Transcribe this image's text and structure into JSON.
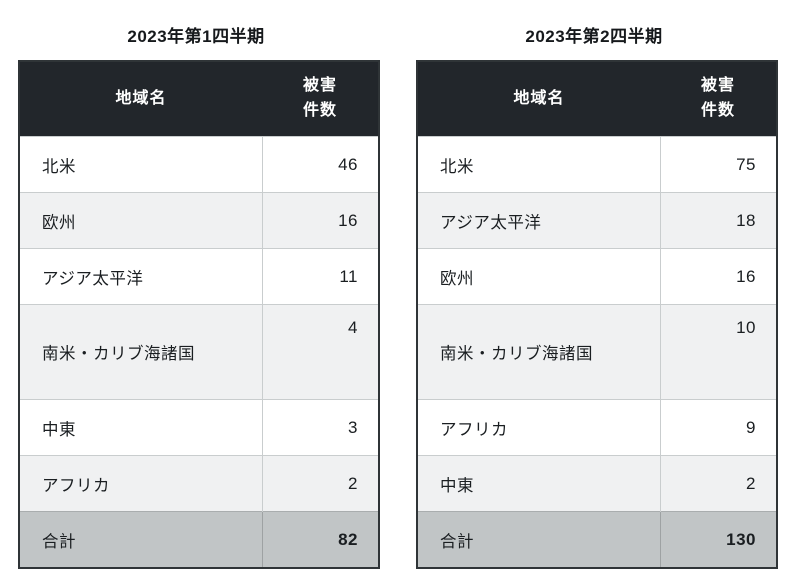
{
  "colors": {
    "header_bg": "#22262b",
    "header_text": "#ffffff",
    "stripe_bg": "#f0f1f2",
    "total_bg": "#c1c5c6",
    "row_border": "#c9cdce",
    "outer_border": "#2f3437",
    "text": "#1a1e21",
    "page_bg": "#ffffff"
  },
  "tables": [
    {
      "title": "2023年第1四半期",
      "headers": {
        "region": "地域名",
        "count_line1": "被害",
        "count_line2": "件数"
      },
      "rows": [
        {
          "region": "北米",
          "count": "46",
          "tall": false
        },
        {
          "region": "欧州",
          "count": "16",
          "tall": false
        },
        {
          "region": "アジア太平洋",
          "count": "11",
          "tall": false
        },
        {
          "region": "南米・カリブ海諸国",
          "count": "4",
          "tall": true
        },
        {
          "region": "中東",
          "count": "3",
          "tall": false
        },
        {
          "region": "アフリカ",
          "count": "2",
          "tall": false
        }
      ],
      "total": {
        "label": "合計",
        "count": "82"
      }
    },
    {
      "title": "2023年第2四半期",
      "headers": {
        "region": "地域名",
        "count_line1": "被害",
        "count_line2": "件数"
      },
      "rows": [
        {
          "region": "北米",
          "count": "75",
          "tall": false
        },
        {
          "region": "アジア太平洋",
          "count": "18",
          "tall": false
        },
        {
          "region": "欧州",
          "count": "16",
          "tall": false
        },
        {
          "region": "南米・カリブ海諸国",
          "count": "10",
          "tall": true
        },
        {
          "region": "アフリカ",
          "count": "9",
          "tall": false
        },
        {
          "region": "中東",
          "count": "2",
          "tall": false
        }
      ],
      "total": {
        "label": "合計",
        "count": "130"
      }
    }
  ],
  "chart_data": [
    {
      "type": "table",
      "title": "2023年第1四半期",
      "columns": [
        "地域名",
        "被害件数"
      ],
      "rows": [
        [
          "北米",
          46
        ],
        [
          "欧州",
          16
        ],
        [
          "アジア太平洋",
          11
        ],
        [
          "南米・カリブ海諸国",
          4
        ],
        [
          "中東",
          3
        ],
        [
          "アフリカ",
          2
        ]
      ],
      "total_row": [
        "合計",
        82
      ]
    },
    {
      "type": "table",
      "title": "2023年第2四半期",
      "columns": [
        "地域名",
        "被害件数"
      ],
      "rows": [
        [
          "北米",
          75
        ],
        [
          "アジア太平洋",
          18
        ],
        [
          "欧州",
          16
        ],
        [
          "南米・カリブ海諸国",
          10
        ],
        [
          "アフリカ",
          9
        ],
        [
          "中東",
          2
        ]
      ],
      "total_row": [
        "合計",
        130
      ]
    }
  ]
}
